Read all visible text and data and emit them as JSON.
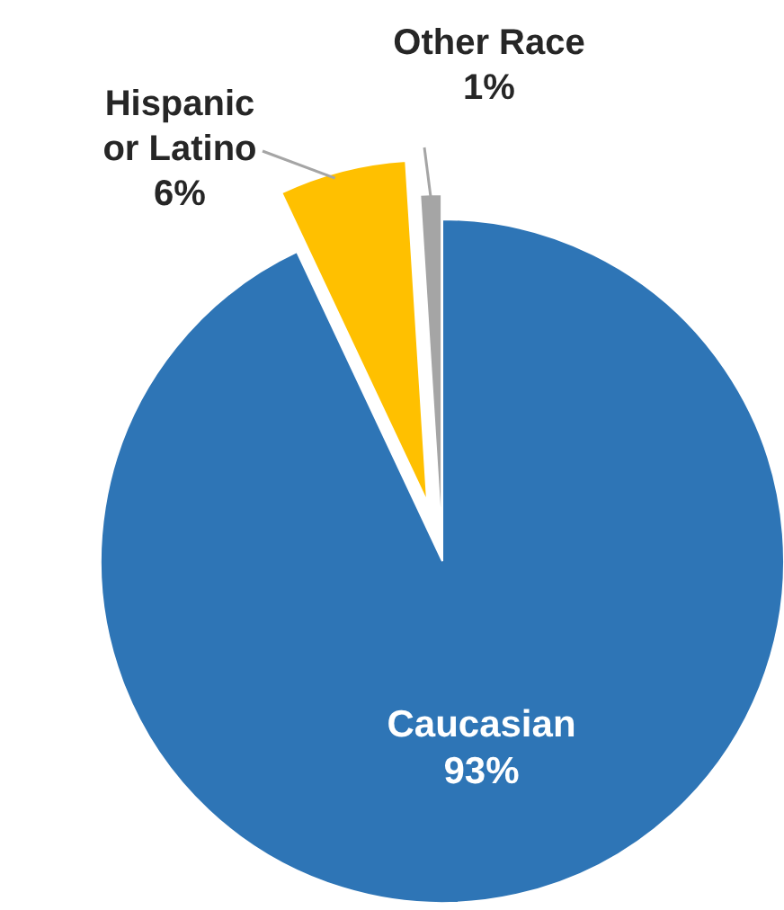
{
  "chart_data": {
    "type": "pie",
    "categories": [
      "Caucasian",
      "Hispanic or Latino",
      "Other Race"
    ],
    "values": [
      93,
      6,
      1
    ],
    "colors": [
      "#2e75b6",
      "#ffc000",
      "#a5a5a5"
    ],
    "value_labels": [
      "93%",
      "6%",
      "1%"
    ]
  }
}
